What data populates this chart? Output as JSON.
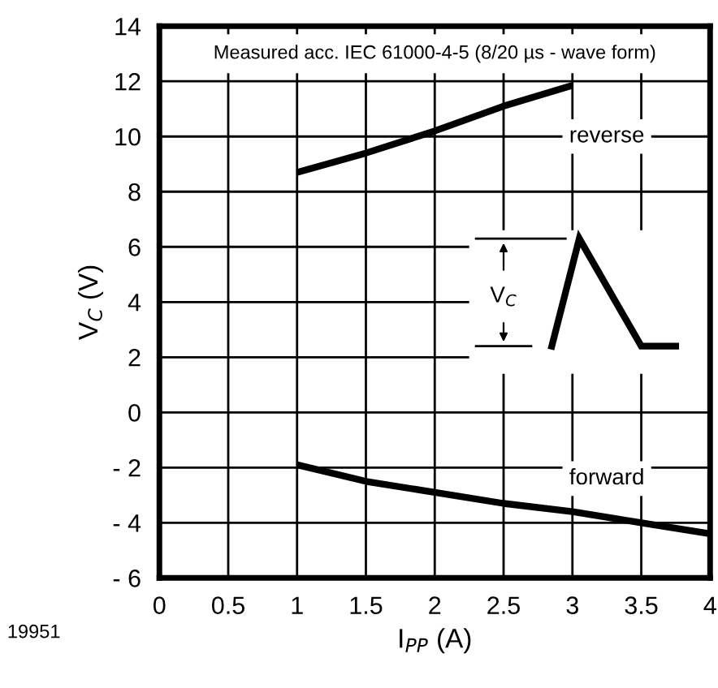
{
  "chart_data": {
    "type": "line",
    "xlabel": "I$_{PP}$ (A)",
    "ylabel": "V$_{C}$ (V)",
    "xlim": [
      0,
      4
    ],
    "xticks": [
      0,
      0.5,
      1,
      1.5,
      2,
      2.5,
      3,
      3.5,
      4
    ],
    "ylim": [
      -6,
      14
    ],
    "yticks": [
      {
        "value": -6,
        "label": "- 6"
      },
      {
        "value": -4,
        "label": "- 4"
      },
      {
        "value": -2,
        "label": "- 2"
      },
      0,
      2,
      4,
      6,
      8,
      10,
      12,
      14
    ],
    "grid": true,
    "line_style": "solid",
    "marker": "none",
    "series": [
      {
        "name": "reverse",
        "color": "#000000",
        "x": [
          1,
          1.5,
          2,
          2.5,
          3
        ],
        "values": [
          8.7,
          9.4,
          10.2,
          11.1,
          11.85
        ]
      },
      {
        "name": "forward",
        "color": "#000000",
        "x": [
          1,
          1.5,
          2,
          2.5,
          3,
          3.5,
          4
        ],
        "values": [
          -1.9,
          -2.5,
          -2.9,
          -3.3,
          -3.6,
          -4.0,
          -4.4
        ]
      }
    ],
    "annotations": [
      "Measured acc. IEC 61000-4-5 (8/20 µs - wave form)",
      "V$_{C}$",
      "19951"
    ]
  }
}
